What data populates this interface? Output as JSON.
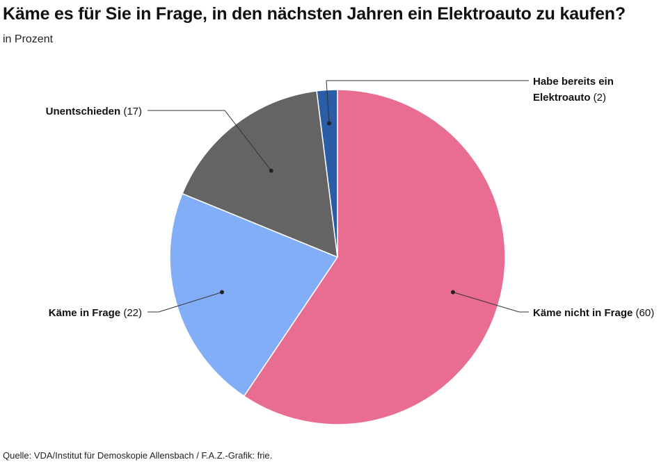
{
  "header": {
    "title": "Käme es für Sie in Frage, in den nächsten Jahren ein Elektroauto zu kaufen?",
    "subtitle": "in Prozent"
  },
  "footer": {
    "source": "Quelle: VDA/Institut für Demoskopie Allensbach / F.A.Z.-Grafik: frie."
  },
  "chart_data": {
    "type": "pie",
    "unit": "in Prozent",
    "start_angle_deg": 0,
    "direction": "clockwise",
    "slices": [
      {
        "name": "Käme nicht in Frage",
        "value": 60,
        "label": "Käme nicht in Frage",
        "value_label": "(60)",
        "color": "#e96d91"
      },
      {
        "name": "Käme in Frage",
        "value": 22,
        "label": "Käme in Frage",
        "value_label": "(22)",
        "color": "#82aef8"
      },
      {
        "name": "Unentschieden",
        "value": 17,
        "label": "Unentschieden",
        "value_label": "(17)",
        "color": "#646464"
      },
      {
        "name": "Habe bereits ein Elektroauto",
        "value": 2,
        "label_lines": [
          "Habe bereits ein",
          "Elektroauto"
        ],
        "value_label": "(2)",
        "color": "#2a5da5"
      }
    ],
    "title": "Käme es für Sie in Frage, in den nächsten Jahren ein Elektroauto zu kaufen?",
    "subtitle": "in Prozent",
    "legend": "none"
  }
}
